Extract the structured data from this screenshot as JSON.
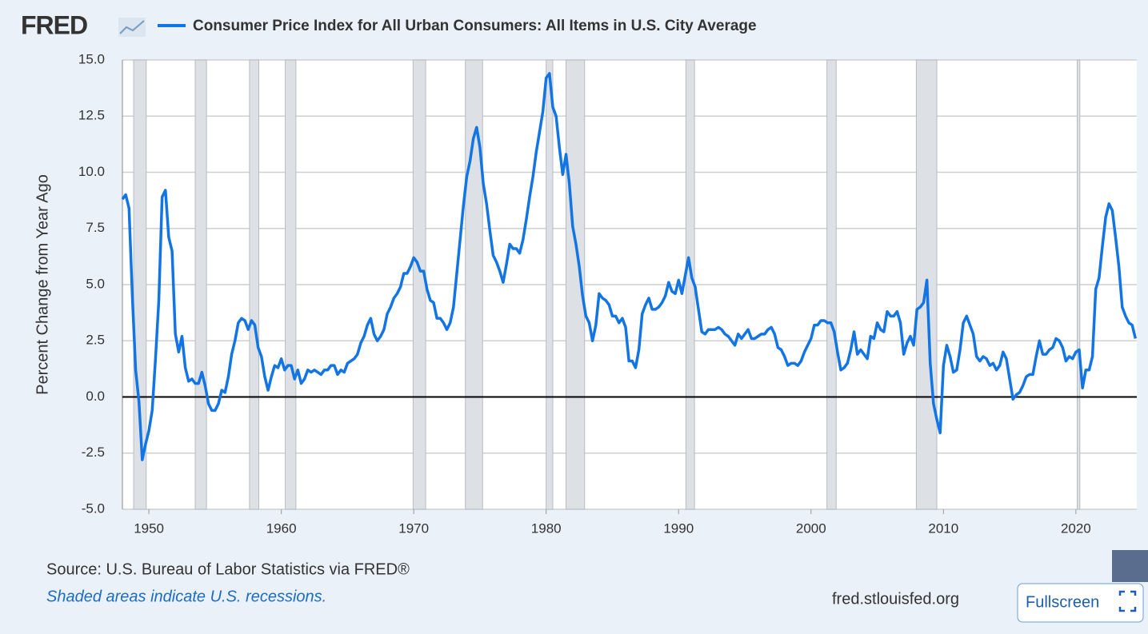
{
  "ui": {
    "logo": "FRED",
    "button": "Fullscreen"
  },
  "chart_data": {
    "type": "line",
    "y_label": "Percent Change from Year Ago",
    "source": "Source: U.S. Bureau of Labor Statistics via FRED®",
    "note": "Shaded areas indicate U.S. recessions.",
    "site": "fred.stlouisfed.org",
    "xlim": [
      1948,
      2024.6
    ],
    "xticks": [
      1950,
      1960,
      1970,
      1980,
      1990,
      2000,
      2010,
      2020
    ],
    "ylim": [
      -5,
      15
    ],
    "yticks": [
      {
        "value": -5,
        "label": "-5.0"
      },
      -2.5,
      {
        "value": 0,
        "label": "0.0"
      },
      2.5,
      {
        "value": 5,
        "label": "5.0"
      },
      7.5,
      {
        "value": 10,
        "label": "10.0"
      },
      12.5,
      {
        "value": 15,
        "label": "15.0"
      }
    ],
    "grid": true,
    "recessions": [
      [
        1948.85,
        1949.8
      ],
      [
        1953.5,
        1954.35
      ],
      [
        1957.6,
        1958.3
      ],
      [
        1960.3,
        1961.1
      ],
      [
        1969.95,
        1970.9
      ],
      [
        1973.9,
        1975.2
      ],
      [
        1980.0,
        1980.5
      ],
      [
        1981.5,
        1982.9
      ],
      [
        1990.55,
        1991.2
      ],
      [
        2001.2,
        2001.9
      ],
      [
        2007.95,
        2009.5
      ],
      [
        2020.1,
        2020.3
      ]
    ],
    "x": [
      1948,
      1948.25,
      1948.5,
      1948.75,
      1949,
      1949.25,
      1949.5,
      1949.75,
      1950,
      1950.25,
      1950.5,
      1950.75,
      1951,
      1951.25,
      1951.5,
      1951.75,
      1952,
      1952.25,
      1952.5,
      1952.75,
      1953,
      1953.25,
      1953.5,
      1953.75,
      1954,
      1954.25,
      1954.5,
      1954.75,
      1955,
      1955.25,
      1955.5,
      1955.75,
      1956,
      1956.25,
      1956.5,
      1956.75,
      1957,
      1957.25,
      1957.5,
      1957.75,
      1958,
      1958.25,
      1958.5,
      1958.75,
      1959,
      1959.25,
      1959.5,
      1959.75,
      1960,
      1960.25,
      1960.5,
      1960.75,
      1961,
      1961.25,
      1961.5,
      1961.75,
      1962,
      1962.25,
      1962.5,
      1962.75,
      1963,
      1963.25,
      1963.5,
      1963.75,
      1964,
      1964.25,
      1964.5,
      1964.75,
      1965,
      1965.25,
      1965.5,
      1965.75,
      1966,
      1966.25,
      1966.5,
      1966.75,
      1967,
      1967.25,
      1967.5,
      1967.75,
      1968,
      1968.25,
      1968.5,
      1968.75,
      1969,
      1969.25,
      1969.5,
      1969.75,
      1970,
      1970.25,
      1970.5,
      1970.75,
      1971,
      1971.25,
      1971.5,
      1971.75,
      1972,
      1972.25,
      1972.5,
      1972.75,
      1973,
      1973.25,
      1973.5,
      1973.75,
      1974,
      1974.25,
      1974.5,
      1974.75,
      1975,
      1975.25,
      1975.5,
      1975.75,
      1976,
      1976.25,
      1976.5,
      1976.75,
      1977,
      1977.25,
      1977.5,
      1977.75,
      1978,
      1978.25,
      1978.5,
      1978.75,
      1979,
      1979.25,
      1979.5,
      1979.75,
      1980,
      1980.25,
      1980.5,
      1980.75,
      1981,
      1981.25,
      1981.5,
      1981.75,
      1982,
      1982.25,
      1982.5,
      1982.75,
      1983,
      1983.25,
      1983.5,
      1983.75,
      1984,
      1984.25,
      1984.5,
      1984.75,
      1985,
      1985.25,
      1985.5,
      1985.75,
      1986,
      1986.25,
      1986.5,
      1986.75,
      1987,
      1987.25,
      1987.5,
      1987.75,
      1988,
      1988.25,
      1988.5,
      1988.75,
      1989,
      1989.25,
      1989.5,
      1989.75,
      1990,
      1990.25,
      1990.5,
      1990.75,
      1991,
      1991.25,
      1991.5,
      1991.75,
      1992,
      1992.25,
      1992.5,
      1992.75,
      1993,
      1993.25,
      1993.5,
      1993.75,
      1994,
      1994.25,
      1994.5,
      1994.75,
      1995,
      1995.25,
      1995.5,
      1995.75,
      1996,
      1996.25,
      1996.5,
      1996.75,
      1997,
      1997.25,
      1997.5,
      1997.75,
      1998,
      1998.25,
      1998.5,
      1998.75,
      1999,
      1999.25,
      1999.5,
      1999.75,
      2000,
      2000.25,
      2000.5,
      2000.75,
      2001,
      2001.25,
      2001.5,
      2001.75,
      2002,
      2002.25,
      2002.5,
      2002.75,
      2003,
      2003.25,
      2003.5,
      2003.75,
      2004,
      2004.25,
      2004.5,
      2004.75,
      2005,
      2005.25,
      2005.5,
      2005.75,
      2006,
      2006.25,
      2006.5,
      2006.75,
      2007,
      2007.25,
      2007.5,
      2007.75,
      2008,
      2008.25,
      2008.5,
      2008.75,
      2009,
      2009.25,
      2009.5,
      2009.75,
      2010,
      2010.25,
      2010.5,
      2010.75,
      2011,
      2011.25,
      2011.5,
      2011.75,
      2012,
      2012.25,
      2012.5,
      2012.75,
      2013,
      2013.25,
      2013.5,
      2013.75,
      2014,
      2014.25,
      2014.5,
      2014.75,
      2015,
      2015.25,
      2015.5,
      2015.75,
      2016,
      2016.25,
      2016.5,
      2016.75,
      2017,
      2017.25,
      2017.5,
      2017.75,
      2018,
      2018.25,
      2018.5,
      2018.75,
      2019,
      2019.25,
      2019.5,
      2019.75,
      2020,
      2020.25,
      2020.5,
      2020.75,
      2021,
      2021.25,
      2021.5,
      2021.75,
      2022,
      2022.25,
      2022.5,
      2022.75,
      2023,
      2023.25,
      2023.5,
      2023.75,
      2024,
      2024.25,
      2024.5
    ],
    "series": [
      {
        "name": "Consumer Price Index for All Urban Consumers: All Items in U.S. City Average",
        "color": "#1275e3",
        "values": [
          8.8,
          9.0,
          8.4,
          4.5,
          1.2,
          -0.2,
          -2.8,
          -2.1,
          -1.5,
          -0.6,
          1.7,
          4.3,
          8.9,
          9.2,
          7.1,
          6.5,
          2.8,
          2.0,
          2.7,
          1.3,
          0.7,
          0.8,
          0.6,
          0.6,
          1.1,
          0.5,
          -0.3,
          -0.6,
          -0.6,
          -0.3,
          0.3,
          0.2,
          0.9,
          1.9,
          2.5,
          3.3,
          3.5,
          3.4,
          3.0,
          3.4,
          3.2,
          2.2,
          1.8,
          0.9,
          0.3,
          0.9,
          1.4,
          1.3,
          1.7,
          1.2,
          1.4,
          1.4,
          0.8,
          1.2,
          0.6,
          0.8,
          1.2,
          1.1,
          1.2,
          1.1,
          1.0,
          1.2,
          1.2,
          1.4,
          1.4,
          1.0,
          1.2,
          1.1,
          1.5,
          1.6,
          1.7,
          1.9,
          2.4,
          2.7,
          3.2,
          3.5,
          2.8,
          2.5,
          2.7,
          3.0,
          3.7,
          4.0,
          4.4,
          4.6,
          4.9,
          5.5,
          5.5,
          5.8,
          6.2,
          6.0,
          5.6,
          5.6,
          4.8,
          4.3,
          4.2,
          3.5,
          3.5,
          3.3,
          3.0,
          3.3,
          4.0,
          5.5,
          7.0,
          8.5,
          9.8,
          10.5,
          11.5,
          12.0,
          11.1,
          9.5,
          8.6,
          7.4,
          6.3,
          6.0,
          5.6,
          5.1,
          5.9,
          6.8,
          6.6,
          6.6,
          6.4,
          7.0,
          7.9,
          8.9,
          9.8,
          10.9,
          11.8,
          12.7,
          14.2,
          14.4,
          12.9,
          12.5,
          11.1,
          9.9,
          10.8,
          9.5,
          7.6,
          6.8,
          5.8,
          4.5,
          3.6,
          3.3,
          2.5,
          3.2,
          4.6,
          4.4,
          4.3,
          4.1,
          3.6,
          3.6,
          3.3,
          3.5,
          3.1,
          1.6,
          1.6,
          1.3,
          2.1,
          3.7,
          4.1,
          4.4,
          3.9,
          3.9,
          4.0,
          4.2,
          4.5,
          5.1,
          4.7,
          4.6,
          5.2,
          4.6,
          5.4,
          6.2,
          5.3,
          4.9,
          3.9,
          2.9,
          2.8,
          3.0,
          3.0,
          3.0,
          3.1,
          3.0,
          2.8,
          2.7,
          2.5,
          2.3,
          2.8,
          2.6,
          2.8,
          3.0,
          2.6,
          2.6,
          2.7,
          2.8,
          2.8,
          3.0,
          3.1,
          2.8,
          2.2,
          2.1,
          1.8,
          1.4,
          1.5,
          1.5,
          1.4,
          1.6,
          2.0,
          2.3,
          2.6,
          3.2,
          3.2,
          3.4,
          3.4,
          3.3,
          3.3,
          2.9,
          2.0,
          1.2,
          1.3,
          1.5,
          2.1,
          2.9,
          1.9,
          2.1,
          1.9,
          1.7,
          2.7,
          2.6,
          3.3,
          3.0,
          2.9,
          3.8,
          3.6,
          3.6,
          3.8,
          3.3,
          1.9,
          2.4,
          2.7,
          2.3,
          3.9,
          4.0,
          4.2,
          5.2,
          1.5,
          -0.3,
          -1.0,
          -1.6,
          1.4,
          2.3,
          1.8,
          1.1,
          1.2,
          2.1,
          3.3,
          3.6,
          3.2,
          2.8,
          1.8,
          1.6,
          1.8,
          1.7,
          1.4,
          1.5,
          1.2,
          1.4,
          2.0,
          1.7,
          0.8,
          -0.1,
          0.1,
          0.2,
          0.5,
          0.9,
          1.0,
          1.0,
          1.8,
          2.5,
          1.9,
          1.9,
          2.1,
          2.2,
          2.6,
          2.5,
          2.2,
          1.6,
          1.8,
          1.7,
          2.0,
          2.1,
          0.4,
          1.2,
          1.2,
          1.8,
          4.8,
          5.3,
          6.7,
          8.0,
          8.6,
          8.3,
          7.1,
          5.8,
          4.0,
          3.6,
          3.3,
          3.2,
          2.6
        ]
      }
    ]
  }
}
